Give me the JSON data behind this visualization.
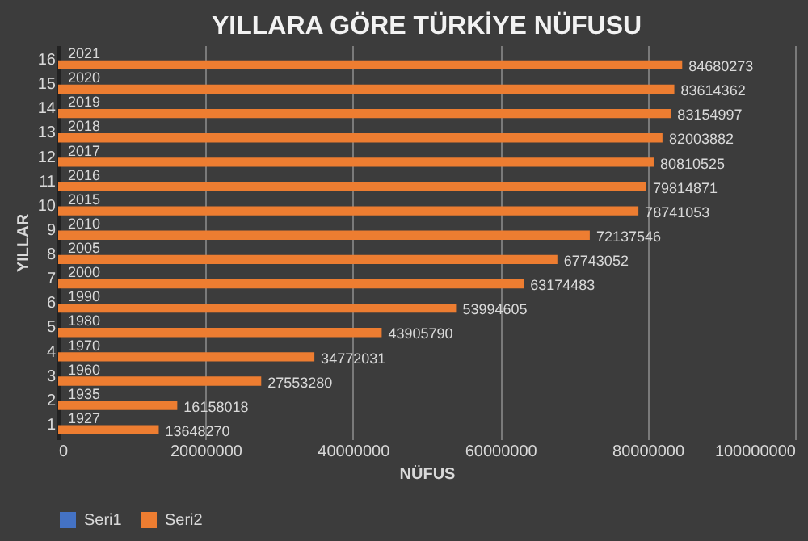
{
  "chart_data": {
    "type": "bar",
    "orientation": "horizontal",
    "title": "YILLARA GÖRE TÜRKİYE NÜFUSU",
    "xlabel": "NÜFUS",
    "ylabel": "YILLAR",
    "categories": [
      "16",
      "15",
      "14",
      "13",
      "12",
      "11",
      "10",
      "9",
      "8",
      "7",
      "6",
      "5",
      "4",
      "3",
      "2",
      "1"
    ],
    "series": [
      {
        "name": "Seri1",
        "color": "#4472c4",
        "values": [
          2021,
          2020,
          2019,
          2018,
          2017,
          2016,
          2015,
          2010,
          2005,
          2000,
          1990,
          1980,
          1970,
          1960,
          1935,
          1927
        ]
      },
      {
        "name": "Seri2",
        "color": "#ed7d31",
        "values": [
          84680273,
          83614362,
          83154997,
          82003882,
          80810525,
          79814871,
          78741053,
          72137546,
          67743052,
          63174483,
          53994605,
          43905790,
          34772031,
          27553280,
          16158018,
          13648270
        ]
      }
    ],
    "xlim": [
      0,
      100000000
    ],
    "xticks": [
      0,
      20000000,
      40000000,
      60000000,
      80000000,
      100000000
    ],
    "grid": "x",
    "legend": "bottom",
    "data_labels": true
  }
}
